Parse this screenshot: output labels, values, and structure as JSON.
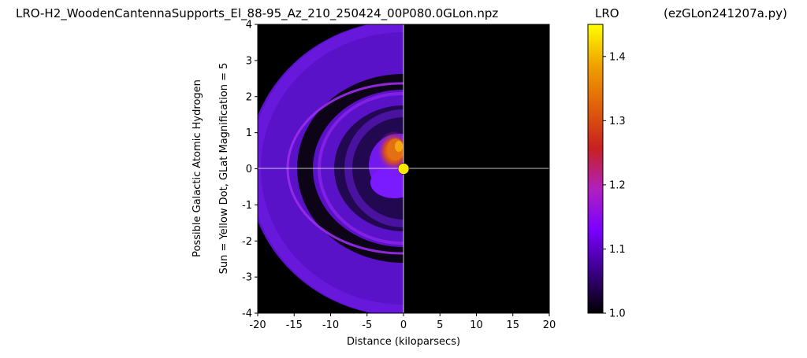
{
  "header": {
    "title": "LRO-H2_WoodenCantennaSupports_El_88-95_Az_210_250424_00P080.0GLon.npz",
    "colorbar_label": "LRO",
    "script_name": "(ezGLon241207a.py)"
  },
  "chart_data": {
    "type": "heatmap",
    "title": "LRO-H2_WoodenCantennaSupports_El_88-95_Az_210_250424_00P080.0GLon.npz",
    "xlabel": "Distance (kiloparsecs)",
    "ylabel": [
      "Possible Galactic Atomic Hydrogen",
      "Sun = Yellow Dot, GLat Magnification = 5"
    ],
    "xlim": [
      -20,
      20
    ],
    "ylim": [
      -4,
      4
    ],
    "xticks": [
      "-20",
      "-15",
      "-10",
      "-5",
      "0",
      "5",
      "10",
      "15",
      "20"
    ],
    "yticks": [
      "4",
      "3",
      "2",
      "1",
      "0",
      "-1",
      "-2",
      "-3",
      "-4"
    ],
    "colorbar": {
      "label": "LRO",
      "range": [
        1.0,
        1.45
      ],
      "ticks": [
        "1.0",
        "1.1",
        "1.2",
        "1.3",
        "1.4"
      ],
      "colormap": "gnuplot",
      "colors": [
        "#000000",
        "#3a0086",
        "#7a00ff",
        "#b020c0",
        "#c82020",
        "#e0600a",
        "#f0a000",
        "#ffff00"
      ]
    },
    "sun": {
      "x": 0,
      "y": 0,
      "color": "#ffe600"
    },
    "crosshair": {
      "x": 0,
      "y": 0,
      "color": "#ffffff"
    },
    "grid": false,
    "background_color": "#000000"
  }
}
